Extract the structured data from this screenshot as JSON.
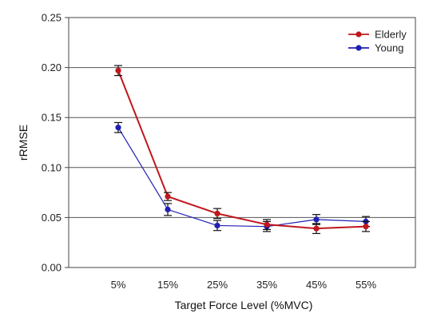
{
  "chart_data": {
    "type": "line",
    "title": "",
    "xlabel": "Target Force Level (%MVC)",
    "ylabel": "rRMSE",
    "categories": [
      "5%",
      "15%",
      "25%",
      "35%",
      "45%",
      "55%"
    ],
    "ylim": [
      0,
      0.25
    ],
    "yticks": [
      0,
      0.05,
      0.1,
      0.15,
      0.2,
      0.25
    ],
    "ytick_labels": [
      "0.00",
      "0.05",
      "0.10",
      "0.15",
      "0.20",
      "0.25"
    ],
    "grid": "horizontal",
    "legend_position": "top-right",
    "series": [
      {
        "name": "Elderly",
        "color": "#c0161c",
        "values": [
          0.197,
          0.071,
          0.054,
          0.043,
          0.039,
          0.041
        ],
        "errors": [
          0.005,
          0.004,
          0.005,
          0.005,
          0.005,
          0.005
        ]
      },
      {
        "name": "Young",
        "color": "#1f1fb4",
        "values": [
          0.14,
          0.058,
          0.042,
          0.041,
          0.048,
          0.046
        ],
        "errors": [
          0.005,
          0.006,
          0.005,
          0.005,
          0.005,
          0.005
        ]
      }
    ]
  }
}
